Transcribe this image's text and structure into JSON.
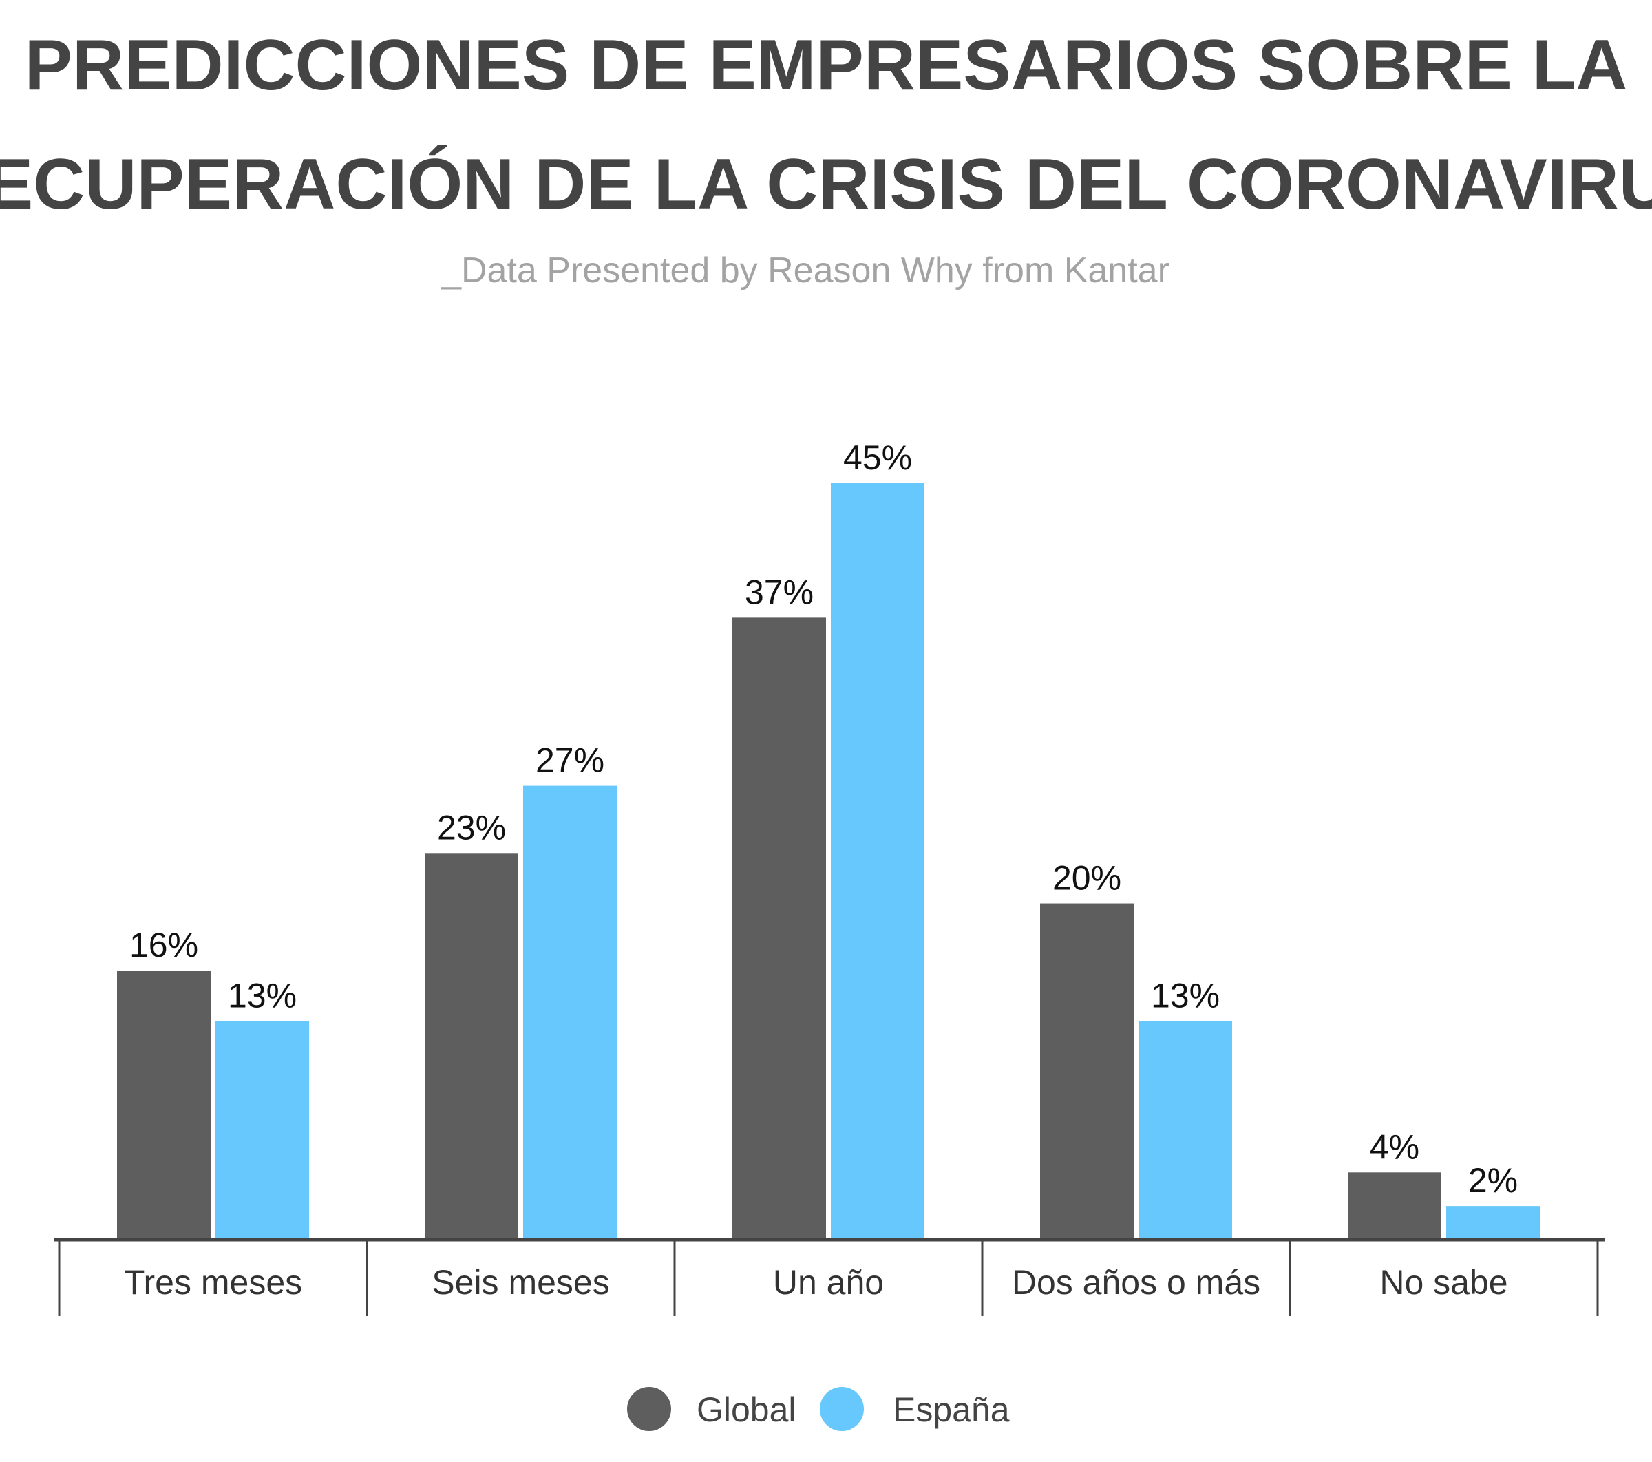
{
  "title_lines": [
    "PREDICCIONES DE EMPRESARIOS SOBRE LA",
    "RECUPERACIÓN DE LA CRISIS DEL CORONAVIRUS"
  ],
  "subtitle": "_Data Presented by Reason Why from Kantar",
  "colors": {
    "global": "#5e5e5e",
    "espana": "#66c8fc",
    "axis": "#444444",
    "title": "#444444"
  },
  "chart_data": {
    "type": "bar",
    "categories": [
      "Tres meses",
      "Seis meses",
      "Un año",
      "Dos años o más",
      "No sabe"
    ],
    "series": [
      {
        "name": "Global",
        "values": [
          16,
          23,
          37,
          20,
          4
        ],
        "labels": [
          "16%",
          "23%",
          "37%",
          "20%",
          "4%"
        ]
      },
      {
        "name": "España",
        "values": [
          13,
          27,
          45,
          13,
          2
        ],
        "labels": [
          "13%",
          "27%",
          "45%",
          "13%",
          "2%"
        ]
      }
    ],
    "ylim": [
      0,
      45
    ],
    "grid": false,
    "legend_position": "bottom-center"
  }
}
